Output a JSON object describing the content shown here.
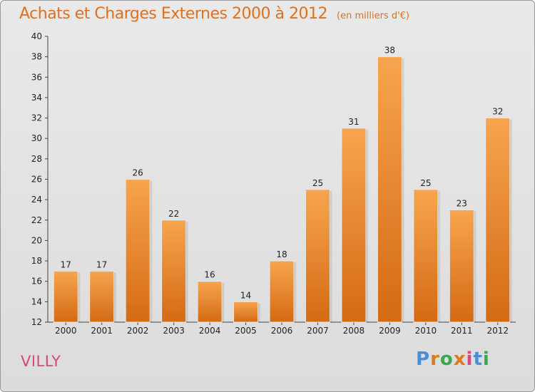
{
  "title": "Achats et Charges Externes 2000 à 2012",
  "subtitle": "(en milliers d'€)",
  "town": "VILLY",
  "logo": {
    "text": "Proxiti",
    "letters": [
      "P",
      "r",
      "o",
      "x",
      "i",
      "t",
      "i"
    ],
    "colors": [
      "#4a8fd6",
      "#e07a1e",
      "#3aa84a",
      "#e07a1e",
      "#d6477e",
      "#4a8fd6",
      "#3aa84a"
    ]
  },
  "chart_data": {
    "type": "bar",
    "categories": [
      "2000",
      "2001",
      "2002",
      "2003",
      "2004",
      "2005",
      "2006",
      "2007",
      "2008",
      "2009",
      "2010",
      "2011",
      "2012"
    ],
    "values": [
      17,
      17,
      26,
      22,
      16,
      14,
      18,
      25,
      31,
      38,
      25,
      23,
      32
    ],
    "ylim": [
      12,
      40
    ],
    "yticks": [
      12,
      14,
      16,
      18,
      20,
      22,
      24,
      26,
      28,
      30,
      32,
      34,
      36,
      38,
      40
    ],
    "grid": false,
    "bar_color": "#f0993e"
  }
}
